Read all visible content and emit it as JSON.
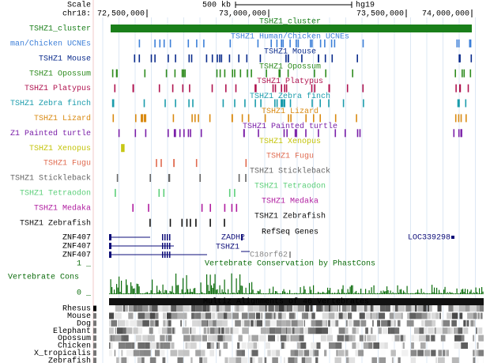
{
  "scale": {
    "label": "Scale",
    "size": "500 kb",
    "assembly": "hg19"
  },
  "position": {
    "chrom": "chr18:",
    "ticks": [
      "72,500,000",
      "73,000,000",
      "73,500,000",
      "74,000,000"
    ]
  },
  "tracks": [
    {
      "label": "TSHZ1_cluster",
      "title": "TSHZ1_cluster",
      "color": "#1a7f1a"
    },
    {
      "label": "man/Chicken UCNEs",
      "title": "TSHZ1 Human/Chicken UCNEs",
      "color": "#3c7fd8"
    },
    {
      "label": "TSHZ1 Mouse",
      "title": "TSHZ1 Mouse",
      "color": "#0a2b8c"
    },
    {
      "label": "TSHZ1 Opossum",
      "title": "TSHZ1 Opossum",
      "color": "#2e8b1e"
    },
    {
      "label": "TSHZ1 Platypus",
      "title": "TSHZ1 Platypus",
      "color": "#b0134f"
    },
    {
      "label": "TSHZ1 Zebra finch",
      "title": "TSHZ1 Zebra finch",
      "color": "#1b9cac"
    },
    {
      "label": "TSHZ1 Lizard",
      "title": "TSHZ1 Lizard",
      "color": "#d98a12"
    },
    {
      "label": "Z1 Painted turtle",
      "title": "TSHZ1 Painted turtle",
      "color": "#7a1fa8"
    },
    {
      "label": "TSHZ1 Xenopus",
      "title": "TSHZ1 Xenopus",
      "color": "#c4c40a"
    },
    {
      "label": "TSHZ1 Fugu",
      "title": "TSHZ1 Fugu",
      "color": "#e06b50"
    },
    {
      "label": "TSHZ1 Stickleback",
      "title": "TSHZ1 Stickleback",
      "color": "#666666"
    },
    {
      "label": "TSHZ1 Tetraodon",
      "title": "TSHZ1 Tetraodon",
      "color": "#5ccf7a"
    },
    {
      "label": "TSHZ1 Medaka",
      "title": "TSHZ1 Medaka",
      "color": "#b01ea0"
    },
    {
      "label": "TSHZ1 Zebrafish",
      "title": "TSHZ1 Zebrafish",
      "color": "#111111"
    }
  ],
  "refseq": {
    "title": "RefSeq Genes",
    "rows": [
      "ZNF407",
      "ZNF407",
      "ZNF407"
    ],
    "genes": [
      "ZADH2",
      "LOC339298",
      "TSHZ1",
      "C18orf62"
    ],
    "color": "#0c0c78"
  },
  "conservation": {
    "label": "Vertebrate Cons",
    "max": "1 _",
    "min": "0 _",
    "title": "Vertebrate Conservation by PhastCons",
    "color": "#0b6c0b"
  },
  "multiz": {
    "title": "Multiz Alignments of 46 Vertebrates",
    "species": [
      "Rhesus",
      "Mouse",
      "Dog",
      "Elephant",
      "Opossum",
      "Chicken",
      "X_tropicalis",
      "Zebrafish"
    ]
  }
}
